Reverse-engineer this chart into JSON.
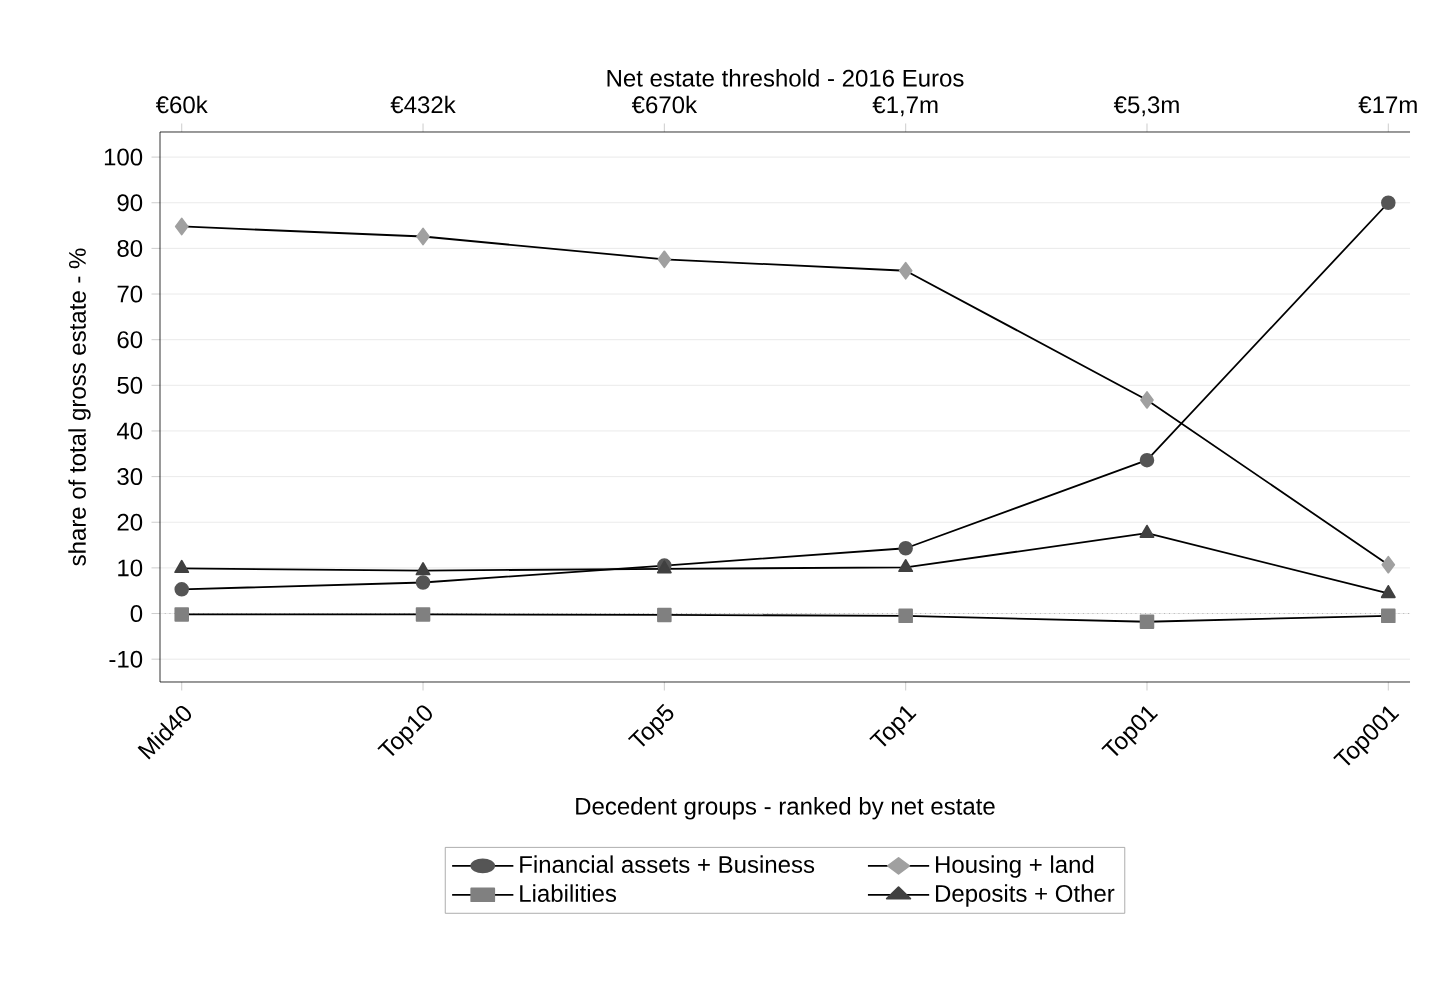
{
  "chart_data": {
    "type": "line",
    "categories": [
      "Mid40",
      "Top10",
      "Top5",
      "Top1",
      "Top01",
      "Top001"
    ],
    "xlabel": "Decedent groups - ranked by net estate",
    "ylabel": "share of total gross estate - %",
    "x2label": "Net estate threshold - 2016 Euros",
    "annotations": [
      "€60k",
      "€432k",
      "€670k",
      "€1,7m",
      "€5,3m",
      "€17m"
    ],
    "ylim": [
      -15,
      105.5
    ],
    "yticks": [
      -10,
      0,
      10,
      20,
      30,
      40,
      50,
      60,
      70,
      80,
      90,
      100
    ],
    "grid": "y",
    "legend": "bottom",
    "ref_lines": [
      {
        "axis": "y",
        "value": 0,
        "color": "#999999",
        "line_style": "dotted"
      }
    ],
    "series": [
      {
        "name": "Financial assets + Business",
        "color": "#555555",
        "marker": "circle",
        "values": [
          5.3,
          6.8,
          10.5,
          14.3,
          33.6,
          90
        ]
      },
      {
        "name": "Housing + land",
        "color": "#a0a0a0",
        "marker": "diamond",
        "values": [
          84.8,
          82.6,
          77.6,
          75.1,
          46.8,
          10.7
        ]
      },
      {
        "name": "Liabilities",
        "color": "#808080",
        "marker": "square",
        "values": [
          -0.2,
          -0.2,
          -0.3,
          -0.5,
          -1.8,
          -0.5
        ]
      },
      {
        "name": "Deposits + Other",
        "color": "#404040",
        "marker": "triangle",
        "values": [
          9.9,
          9.4,
          9.8,
          10.1,
          17.6,
          4.4
        ]
      }
    ]
  }
}
